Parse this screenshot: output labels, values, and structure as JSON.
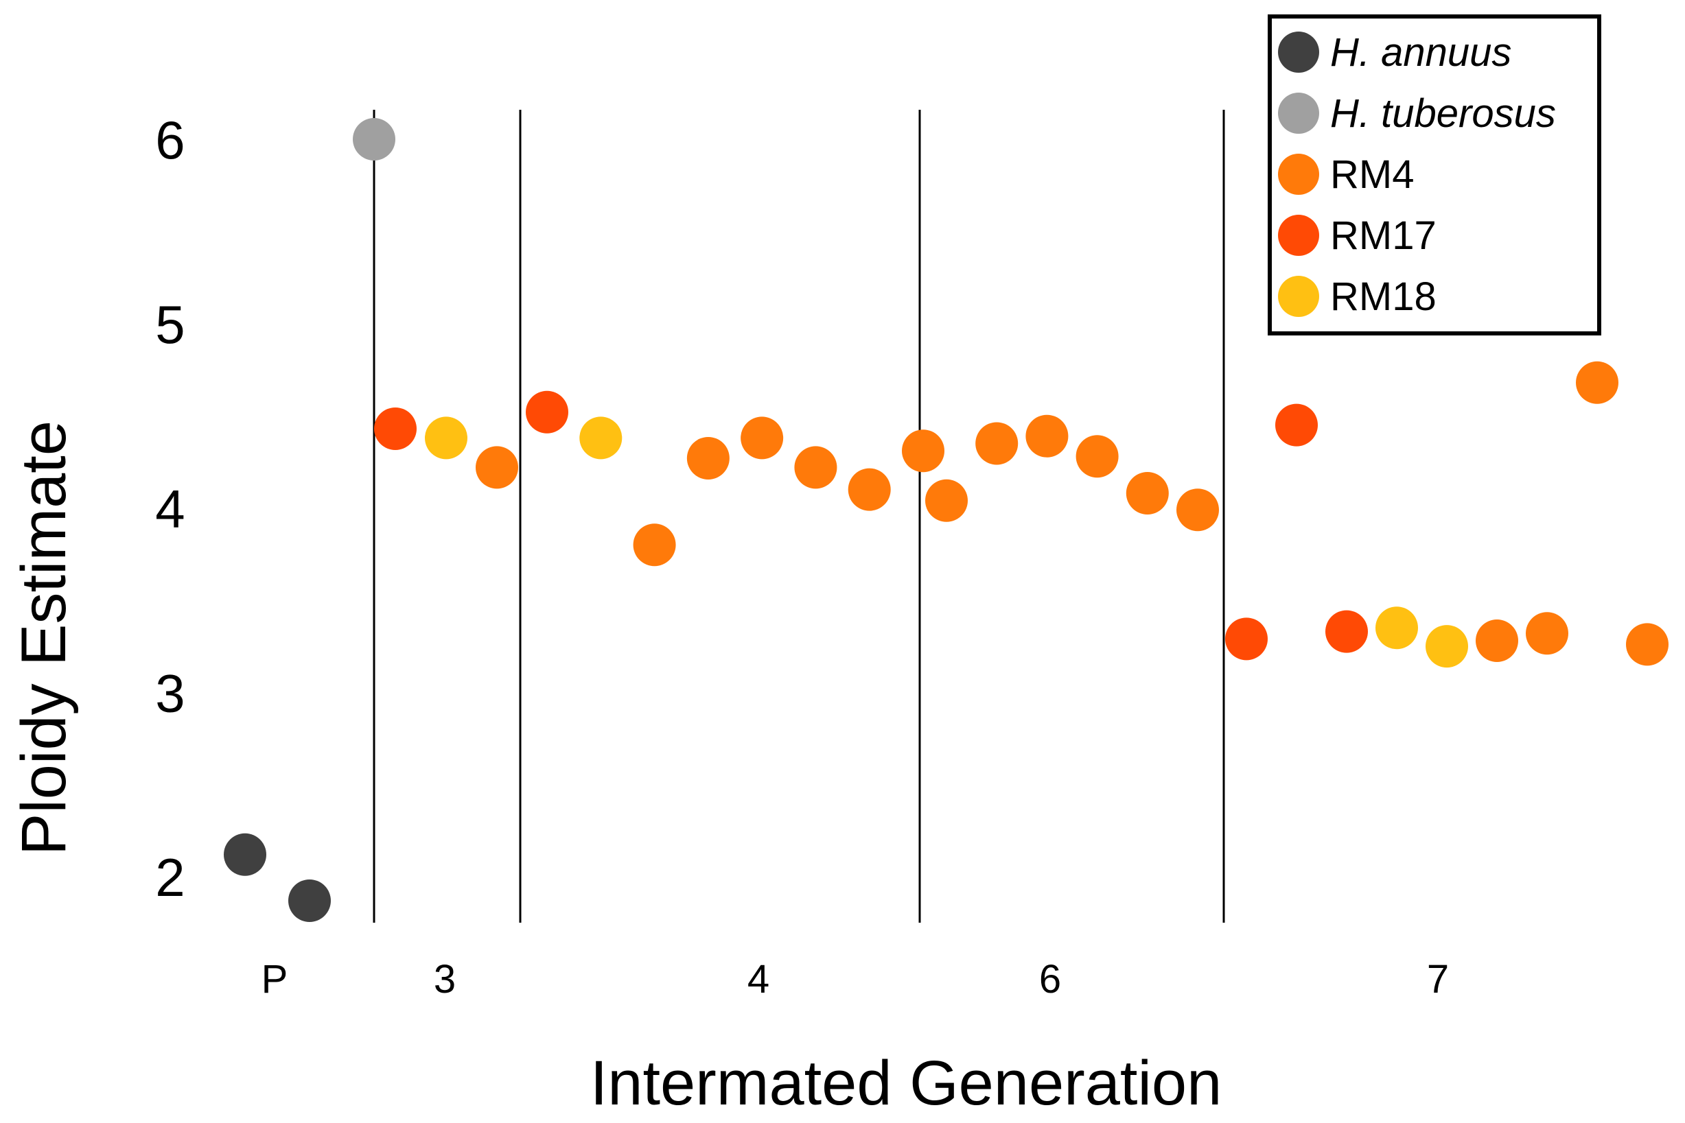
{
  "chart_data": {
    "type": "scatter",
    "title": "",
    "xlabel": "Intermated Generation",
    "ylabel": "Ploidy Estimate",
    "ylim": [
      1.8,
      6.2
    ],
    "yticks": [
      2,
      3,
      4,
      5,
      6
    ],
    "grid": false,
    "legend_position": "top-right",
    "groups": [
      "P",
      "3",
      "4",
      "6",
      "7"
    ],
    "legend": [
      {
        "name": "H. annuus",
        "color": "#404040",
        "italic": true
      },
      {
        "name": "H. tuberosus",
        "color": "#a0a0a0",
        "italic": true
      },
      {
        "name": "RM4",
        "color": "#ff7a0a",
        "italic": false
      },
      {
        "name": "RM17",
        "color": "#ff4a05",
        "italic": false
      },
      {
        "name": "RM18",
        "color": "#ffc012",
        "italic": false
      }
    ],
    "points": [
      {
        "group": "P",
        "series": "H. annuus",
        "y": 2.12
      },
      {
        "group": "P",
        "series": "H. annuus",
        "y": 1.87
      },
      {
        "group": "P",
        "series": "H. tuberosus",
        "y": 6.0
      },
      {
        "group": "3",
        "series": "RM17",
        "y": 4.43
      },
      {
        "group": "3",
        "series": "RM18",
        "y": 4.38
      },
      {
        "group": "3",
        "series": "RM4",
        "y": 4.22
      },
      {
        "group": "4",
        "series": "RM17",
        "y": 4.52
      },
      {
        "group": "4",
        "series": "RM18",
        "y": 4.38
      },
      {
        "group": "4",
        "series": "RM4",
        "y": 3.8
      },
      {
        "group": "4",
        "series": "RM4",
        "y": 4.27
      },
      {
        "group": "4",
        "series": "RM4",
        "y": 4.38
      },
      {
        "group": "4",
        "series": "RM4",
        "y": 4.22
      },
      {
        "group": "4",
        "series": "RM4",
        "y": 4.1
      },
      {
        "group": "4",
        "series": "RM4",
        "y": 4.31
      },
      {
        "group": "6",
        "series": "RM4",
        "y": 4.04
      },
      {
        "group": "6",
        "series": "RM4",
        "y": 4.35
      },
      {
        "group": "6",
        "series": "RM4",
        "y": 4.39
      },
      {
        "group": "6",
        "series": "RM4",
        "y": 4.28
      },
      {
        "group": "6",
        "series": "RM4",
        "y": 4.08
      },
      {
        "group": "6",
        "series": "RM4",
        "y": 3.99
      },
      {
        "group": "7",
        "series": "RM17",
        "y": 3.29
      },
      {
        "group": "7",
        "series": "RM17",
        "y": 4.45
      },
      {
        "group": "7",
        "series": "RM17",
        "y": 3.33
      },
      {
        "group": "7",
        "series": "RM18",
        "y": 3.35
      },
      {
        "group": "7",
        "series": "RM18",
        "y": 3.25
      },
      {
        "group": "7",
        "series": "RM4",
        "y": 3.28
      },
      {
        "group": "7",
        "series": "RM4",
        "y": 3.32
      },
      {
        "group": "7",
        "series": "RM4",
        "y": 4.68
      },
      {
        "group": "7",
        "series": "RM4",
        "y": 3.26
      }
    ]
  }
}
